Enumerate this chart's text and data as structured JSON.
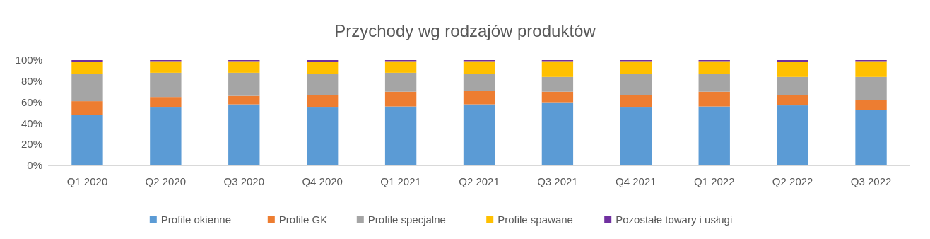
{
  "chart_data": {
    "type": "bar",
    "title": "Przychody wg rodzajów produktów",
    "stacked": true,
    "legend": "bottom",
    "grid": false,
    "categories": [
      "Q1 2020",
      "Q2 2020",
      "Q3 2020",
      "Q4 2020",
      "Q1 2021",
      "Q2 2021",
      "Q3 2021",
      "Q4 2021",
      "Q1 2022",
      "Q2 2022",
      "Q3 2022"
    ],
    "ylim": [
      0,
      100
    ],
    "yticks": [
      {
        "value": 0,
        "label": "0%"
      },
      {
        "value": 20,
        "label": "20%"
      },
      {
        "value": 40,
        "label": "40%"
      },
      {
        "value": 60,
        "label": "60%"
      },
      {
        "value": 80,
        "label": "80%"
      },
      {
        "value": 100,
        "label": "100%"
      }
    ],
    "series": [
      {
        "name": "Profile okienne",
        "color": "#5b9bd5",
        "values": [
          48,
          55,
          58,
          55,
          56,
          58,
          60,
          55,
          56,
          57,
          53
        ]
      },
      {
        "name": "Profile GK",
        "color": "#ed7d31",
        "values": [
          13,
          10,
          8,
          12,
          14,
          13,
          10,
          12,
          14,
          10,
          9
        ]
      },
      {
        "name": "Profile specjalne",
        "color": "#a5a5a5",
        "values": [
          26,
          23,
          22,
          20,
          18,
          16,
          14,
          20,
          17,
          17,
          22
        ]
      },
      {
        "name": "Profile spawane",
        "color": "#ffc000",
        "values": [
          11,
          11,
          11,
          11,
          11,
          12,
          15,
          12,
          12,
          14,
          15
        ]
      },
      {
        "name": "Pozostałe towary i usługi",
        "color": "#7030a0",
        "values": [
          2,
          1,
          1,
          2,
          1,
          1,
          1,
          1,
          1,
          2,
          1
        ]
      }
    ]
  }
}
